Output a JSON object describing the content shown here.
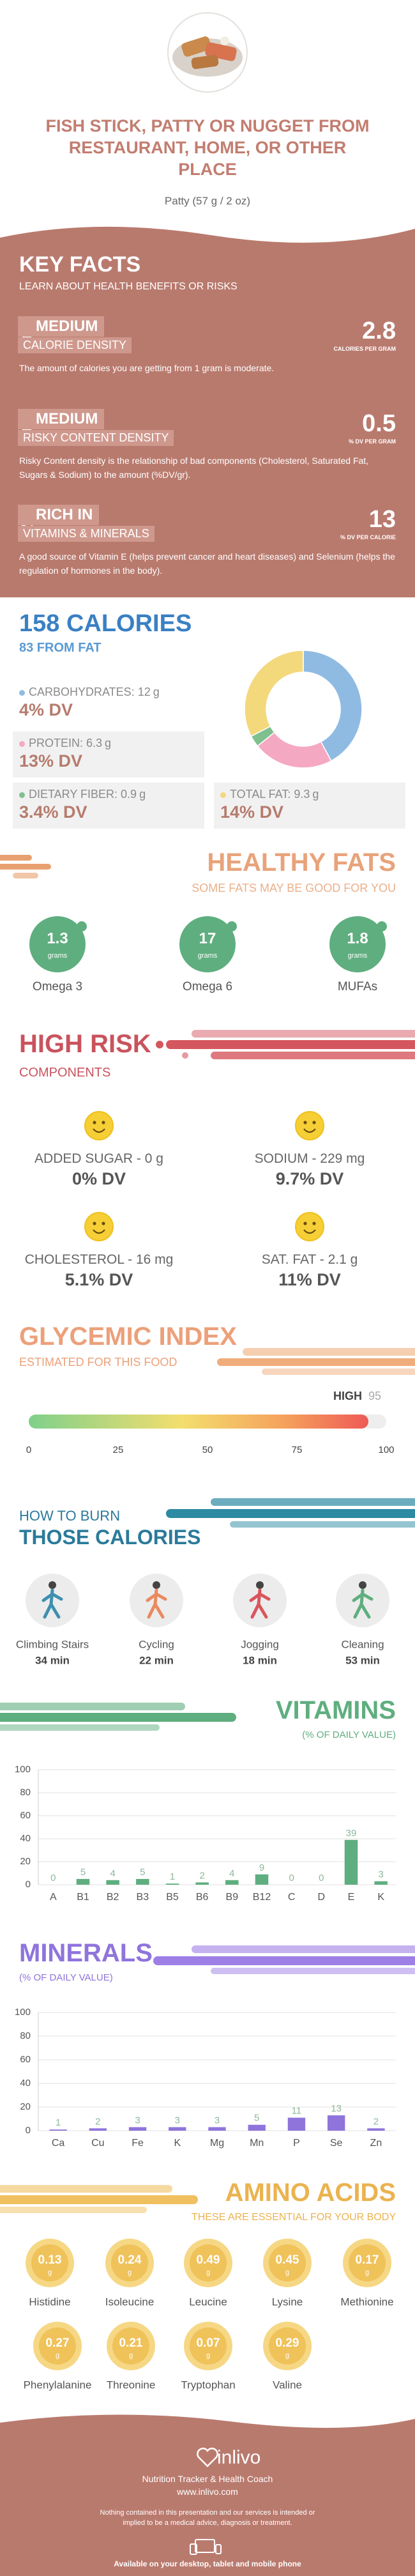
{
  "header": {
    "title": "FISH STICK, PATTY OR NUGGET FROM RESTAURANT, HOME, OR OTHER PLACE",
    "serving": "Patty (57 g / 2 oz)"
  },
  "key_facts": {
    "title": "KEY FACTS",
    "subtitle": "LEARN ABOUT HEALTH BENEFITS OR RISKS",
    "items": [
      {
        "level": "MEDIUM",
        "label": "CALORIE DENSITY",
        "value": "2.8",
        "unit": "CALORIES PER GRAM",
        "description": "The amount of calories you are getting from 1 gram is moderate."
      },
      {
        "level": "MEDIUM",
        "label": "RISKY CONTENT DENSITY",
        "value": "0.5",
        "unit": "% DV PER GRAM",
        "description": "Risky Content density is the relationship of bad components (Cholesterol, Saturated Fat, Sugars & Sodium) to the amount (%DV/gr)."
      },
      {
        "level": "RICH IN",
        "label": "VITAMINS & MINERALS",
        "value": "13",
        "unit": "% DV PER CALORIE",
        "description": "A good source of Vitamin E (helps prevent cancer and heart diseases) and Selenium (helps the regulation of hormones in the body)."
      }
    ]
  },
  "calories": {
    "title": "158 CALORIES",
    "subtitle": "83 FROM FAT",
    "macros": [
      {
        "name": "CARBOHYDRATES:",
        "grams": 12,
        "unit": "g",
        "dv": "4% DV",
        "color": "#8fbbe3"
      },
      {
        "name": "PROTEIN:",
        "grams": 6.3,
        "unit": "g",
        "dv": "13% DV",
        "color": "#f5a8c2"
      },
      {
        "name": "DIETARY FIBER:",
        "grams": 0.9,
        "unit": "g",
        "dv": "3.4% DV",
        "color": "#7fc08e"
      },
      {
        "name": "TOTAL FAT:",
        "grams": 9.3,
        "unit": "g",
        "dv": "14% DV",
        "color": "#f3d87c"
      }
    ]
  },
  "healthy_fats": {
    "title": "HEALTHY FATS",
    "subtitle": "SOME FATS MAY BE GOOD FOR YOU",
    "items": [
      {
        "value": "1.3",
        "unit": "grams",
        "name": "Omega 3"
      },
      {
        "value": "17",
        "unit": "grams",
        "name": "Omega 6"
      },
      {
        "value": "1.8",
        "unit": "grams",
        "name": "MUFAs"
      }
    ]
  },
  "high_risk": {
    "title": "HIGH RISK",
    "subtitle": "COMPONENTS",
    "items": [
      {
        "label": "ADDED SUGAR - 0 g",
        "dv": "0% DV"
      },
      {
        "label": "SODIUM - 229 mg",
        "dv": "9.7% DV"
      },
      {
        "label": "CHOLESTEROL - 16 mg",
        "dv": "5.1% DV"
      },
      {
        "label": "SAT. FAT - 2.1 g",
        "dv": "11% DV"
      }
    ]
  },
  "glycemic_index": {
    "title": "GLYCEMIC INDEX",
    "subtitle": "ESTIMATED FOR THIS FOOD",
    "level": "HIGH",
    "value": 95,
    "xlim": [
      0,
      100
    ],
    "xticks": [
      0,
      25,
      50,
      75,
      100
    ]
  },
  "burn": {
    "title": "HOW TO BURN",
    "subtitle": "THOSE CALORIES",
    "activities": [
      {
        "name": "Climbing Stairs",
        "time": "34 min"
      },
      {
        "name": "Cycling",
        "time": "22 min"
      },
      {
        "name": "Jogging",
        "time": "18 min"
      },
      {
        "name": "Cleaning",
        "time": "53 min"
      }
    ]
  },
  "chart_data": [
    {
      "type": "bar",
      "title": "VITAMINS",
      "subtitle": "(% OF DAILY VALUE)",
      "categories": [
        "A",
        "B1",
        "B2",
        "B3",
        "B5",
        "B6",
        "B9",
        "B12",
        "C",
        "D",
        "E",
        "K"
      ],
      "values": [
        0,
        5,
        4,
        5,
        1,
        2,
        4,
        9,
        0,
        0,
        39,
        3
      ],
      "color": "#5fae7f",
      "ylim": [
        0,
        100
      ],
      "yticks": [
        0,
        20,
        40,
        60,
        80,
        100
      ],
      "grid": true
    },
    {
      "type": "bar",
      "title": "MINERALS",
      "subtitle": "(% OF DAILY VALUE)",
      "categories": [
        "Ca",
        "Cu",
        "Fe",
        "K",
        "Mg",
        "Mn",
        "P",
        "Se",
        "Zn"
      ],
      "values": [
        1,
        2,
        3,
        3,
        3,
        5,
        11,
        13,
        2
      ],
      "color": "#8f74dc",
      "ylim": [
        0,
        100
      ],
      "yticks": [
        0,
        20,
        40,
        60,
        80,
        100
      ],
      "grid": true
    }
  ],
  "amino_acids": {
    "title": "AMINO ACIDS",
    "subtitle": "THESE ARE ESSENTIAL FOR YOUR BODY",
    "unit": "g",
    "items": [
      {
        "name": "Histidine",
        "value": "0.13"
      },
      {
        "name": "Isoleucine",
        "value": "0.24"
      },
      {
        "name": "Leucine",
        "value": "0.49"
      },
      {
        "name": "Lysine",
        "value": "0.45"
      },
      {
        "name": "Methionine",
        "value": "0.17"
      },
      {
        "name": "Phenylalanine",
        "value": "0.27"
      },
      {
        "name": "Threonine",
        "value": "0.21"
      },
      {
        "name": "Tryptophan",
        "value": "0.07"
      },
      {
        "name": "Valine",
        "value": "0.29"
      }
    ]
  },
  "footer": {
    "brand": "inlivo",
    "tagline": "Nutrition Tracker & Health Coach",
    "url": "www.inlivo.com",
    "disclaimer": "Nothing contained in this presentation and our services is intended or implied to be a medical advice, diagnosis or treatment.",
    "available": "Available on your desktop, tablet and mobile phone"
  }
}
